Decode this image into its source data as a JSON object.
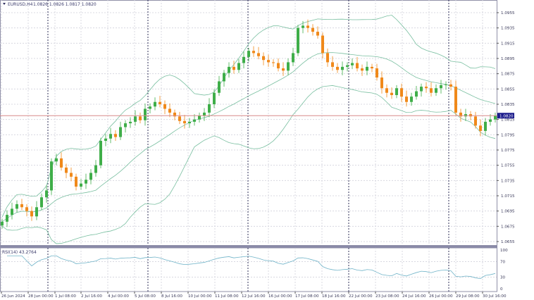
{
  "header": {
    "symbol": "EURUSD,H4",
    "ohlc": "1.0826 1.0826 1.0817 1.0820"
  },
  "rsi_header": "RSI(14) 43.2764",
  "colors": {
    "bull": "#3fae49",
    "bear": "#f0891a",
    "bands": "#79bfa0",
    "rsi": "#6fb3c8",
    "price_line": "#d88a8a",
    "price_tag": "#1c1c8c",
    "grid": "#d8d8e0",
    "separator": "#2c2c6a"
  },
  "chart_data": [
    {
      "type": "candlestick",
      "title": "EURUSD,H4",
      "ylim": [
        1.065,
        1.0965
      ],
      "y_ticks": [
        "1.0955",
        "1.0935",
        "1.0915",
        "1.0895",
        "1.0875",
        "1.0855",
        "1.0835",
        "1.0815",
        "1.0795",
        "1.0775",
        "1.0755",
        "1.0735",
        "1.0715",
        "1.0695",
        "1.0675",
        "1.0655"
      ],
      "x_ticks": [
        "26 Jun 2024",
        "28 Jun 00:00",
        "1 Jul 08:00",
        "2 Jul 16:00",
        "4 Jul 00:00",
        "5 Jul 08:00",
        "8 Jul 16:00",
        "10 Jul 00:00",
        "11 Jul 08:00",
        "12 Jul 16:00",
        "16 Jul 00:00",
        "17 Jul 08:00",
        "18 Jul 16:00",
        "22 Jul 00:00",
        "23 Jul 08:00",
        "24 Jul 16:00",
        "26 Jul 00:00",
        "29 Jul 08:00",
        "30 Jul 16:00"
      ],
      "current_price": "1.0820",
      "first_open": 1.0676,
      "closes": [
        1.0681,
        1.069,
        1.0698,
        1.0704,
        1.07,
        1.0695,
        1.0688,
        1.07,
        1.0713,
        1.0722,
        1.076,
        1.0764,
        1.0752,
        1.0745,
        1.074,
        1.0727,
        1.0731,
        1.0736,
        1.0745,
        1.0755,
        1.0787,
        1.079,
        1.0796,
        1.0792,
        1.0805,
        1.081,
        1.0812,
        1.0819,
        1.0814,
        1.0829,
        1.0832,
        1.0838,
        1.0835,
        1.0829,
        1.0824,
        1.0819,
        1.0813,
        1.081,
        1.0812,
        1.0815,
        1.082,
        1.0824,
        1.0835,
        1.085,
        1.0865,
        1.0876,
        1.0884,
        1.088,
        1.0889,
        1.0897,
        1.0905,
        1.0902,
        1.0898,
        1.0893,
        1.089,
        1.0889,
        1.0882,
        1.0879,
        1.089,
        1.0902,
        1.0935,
        1.0938,
        1.0935,
        1.093,
        1.0925,
        1.0902,
        1.089,
        1.0884,
        1.088,
        1.0884,
        1.0886,
        1.0889,
        1.0882,
        1.0879,
        1.0884,
        1.0882,
        1.087,
        1.0856,
        1.085,
        1.0847,
        1.0856,
        1.0845,
        1.0838,
        1.0845,
        1.0852,
        1.0858,
        1.0856,
        1.085,
        1.0856,
        1.086,
        1.0861,
        1.0858,
        1.0824,
        1.0819,
        1.0822,
        1.0819,
        1.0807,
        1.08,
        1.0812,
        1.0815,
        1.082
      ],
      "indicators": [
        "Bollinger Bands (20, 2)"
      ]
    },
    {
      "type": "line",
      "title": "RSI(14) 43.2764",
      "ylim": [
        0,
        100
      ],
      "y_ticks": [
        "100",
        "70",
        "30",
        "0"
      ]
    }
  ]
}
